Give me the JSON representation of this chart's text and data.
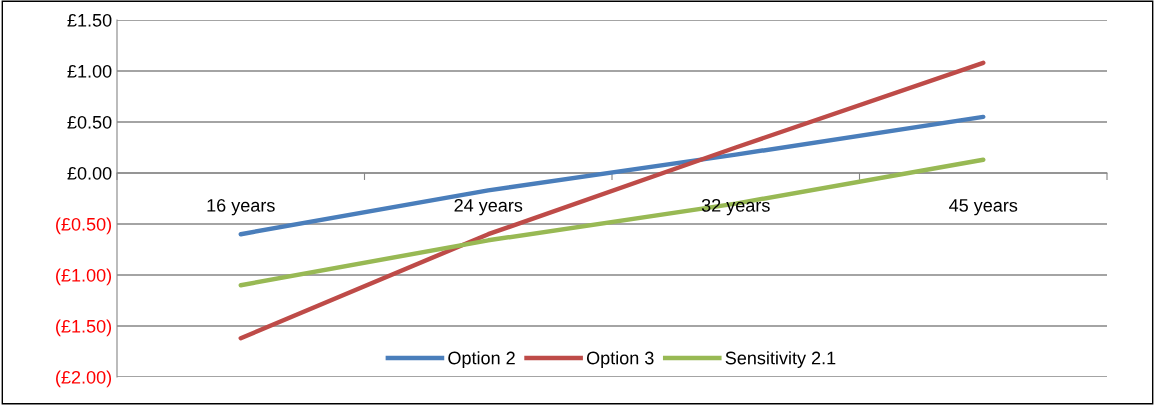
{
  "chart_data": {
    "type": "line",
    "categories": [
      "16 years",
      "24 years",
      "32 years",
      "45 years"
    ],
    "series": [
      {
        "name": "Option 2",
        "color": "#4a7ebb",
        "values": [
          -0.6,
          -0.17,
          0.18,
          0.55
        ]
      },
      {
        "name": "Option 3",
        "color": "#be4b48",
        "values": [
          -1.62,
          -0.6,
          0.25,
          1.08
        ]
      },
      {
        "name": "Sensitivity 2.1",
        "color": "#98b954",
        "values": [
          -1.1,
          -0.66,
          -0.3,
          0.13
        ]
      }
    ],
    "ylim": [
      -2,
      1.5
    ],
    "yticks": [
      {
        "value": -2,
        "label": "(£2.00)"
      },
      {
        "value": -1.5,
        "label": "(£1.50)"
      },
      {
        "value": -1,
        "label": "(£1.00)"
      },
      {
        "value": -0.5,
        "label": "(£0.50)"
      },
      {
        "value": 0,
        "label": "£0.00"
      },
      {
        "value": 0.5,
        "label": "£0.50"
      },
      {
        "value": 1,
        "label": "£1.00"
      },
      {
        "value": 1.5,
        "label": "£1.50"
      }
    ],
    "grid": "y",
    "legend": "bottom",
    "marker": "none",
    "line_style": "solid"
  }
}
